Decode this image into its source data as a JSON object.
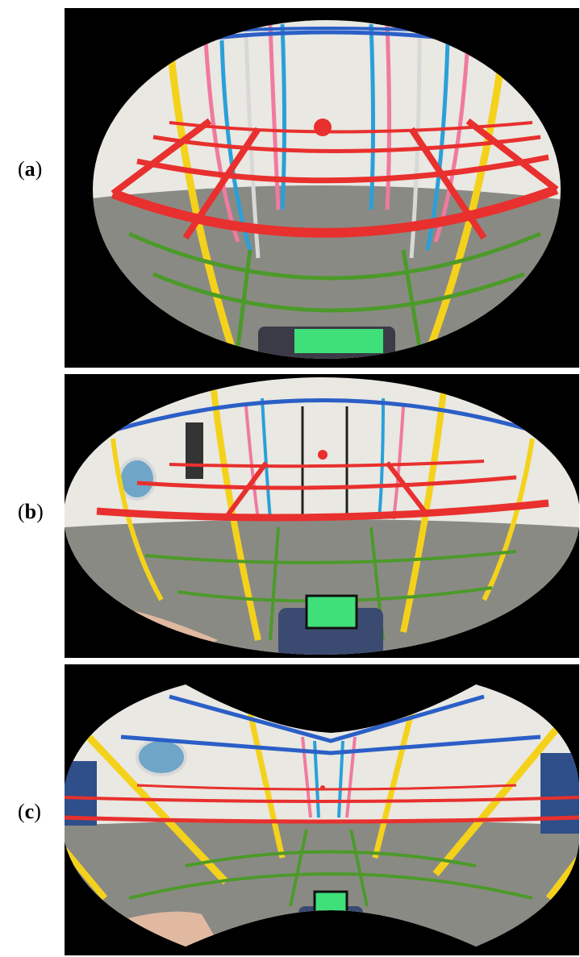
{
  "figure": {
    "panels": [
      {
        "id": "a",
        "label_open": "(",
        "label_letter": "a",
        "label_close": ")"
      },
      {
        "id": "b",
        "label_open": "(",
        "label_letter": "b",
        "label_close": ")"
      },
      {
        "id": "c",
        "label_open": "(",
        "label_letter": "c",
        "label_close": ")"
      }
    ]
  },
  "colors": {
    "background": "#000000",
    "wall": "#e9e8e2",
    "floor": "#8a8a84",
    "red_bar": "#e8302e",
    "blue_bar": "#2b5fc7",
    "yellow_bar": "#f4d21c",
    "green_bar": "#4c9a2a",
    "pink_bar": "#f07aa0",
    "cyan_bar": "#2aa0d8",
    "tablet_screen": "#3fe07a"
  }
}
